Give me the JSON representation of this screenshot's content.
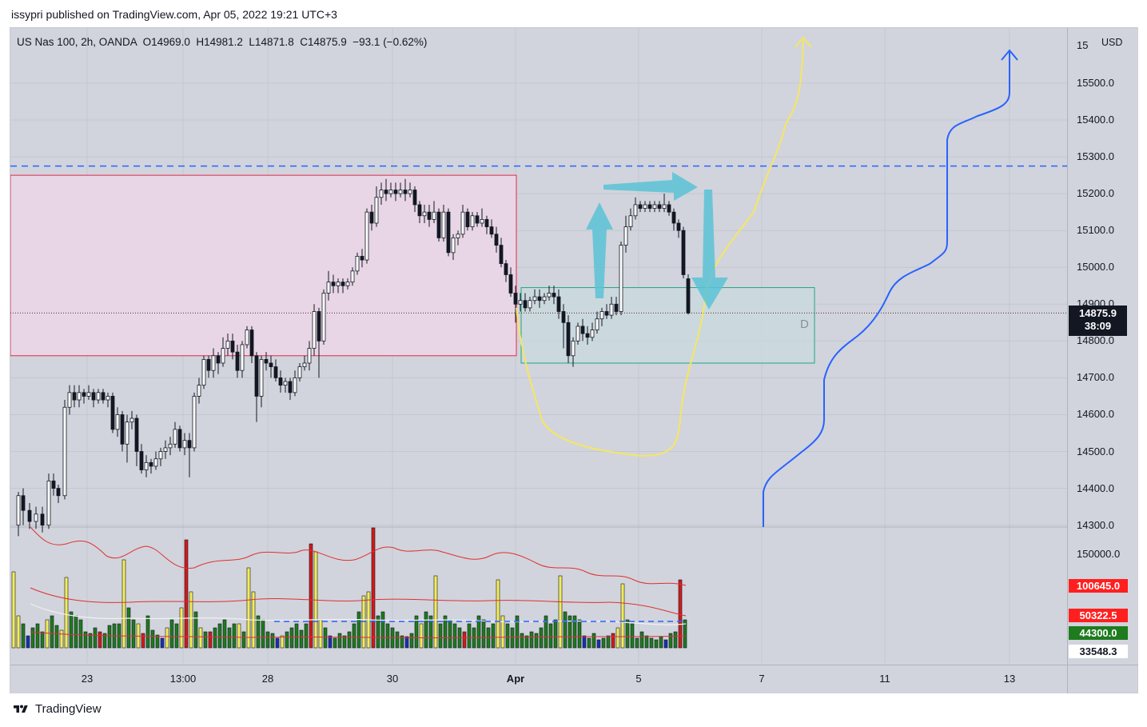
{
  "publish_line": "issypri published on TradingView.com, Apr 05, 2022 19:21 UTC+3",
  "legend": "US Nas 100, 2h, OANDA  O14969.0  H14981.2  L14871.8  C14875.9  −93.1 (−0.62%)",
  "currency": "USD",
  "price_ticks": [
    "15500.0",
    "15400.0",
    "15300.0",
    "15200.0",
    "15100.0",
    "15000.0",
    "14900.0",
    "14800.0",
    "14700.0",
    "14600.0",
    "14500.0",
    "14400.0",
    "14300.0"
  ],
  "top_tick_partial": "15",
  "last_price": "14875.9",
  "countdown": "38:09",
  "volume_axis": {
    "tick": "150000.0",
    "labels": [
      {
        "text": "100645.0",
        "color": "#ff1f1f",
        "fg": "#ffffff"
      },
      {
        "text": "50322.5",
        "color": "#ff1f1f",
        "fg": "#ffffff"
      },
      {
        "text": "44300.0",
        "color": "#1e7b1e",
        "fg": "#ffffff"
      },
      {
        "text": "33548.3",
        "color": "#ffffff",
        "fg": "#131722"
      }
    ]
  },
  "time_ticks": [
    "23",
    "13:00",
    "28",
    "30",
    "Apr",
    "5",
    "7",
    "11",
    "13"
  ],
  "zone_label": "D",
  "brand": "TradingView",
  "colors": {
    "bg": "#d1d4dc",
    "resistance_zone": "#e8d6e6",
    "resistance_border": "#e0294a",
    "demand_zone": "#c9d9df",
    "demand_border": "#22a58a",
    "dashed_level": "#2962ff",
    "yellow_path": "#f5e663",
    "blue_path": "#2962ff",
    "arrow": "#5bc2d6",
    "volume_yellow": "#f2ec5a",
    "volume_green": "#1e7b1e",
    "volume_red": "#d41a1a",
    "volume_blue": "#1a2fb8"
  },
  "chart_data": {
    "type": "candlestick",
    "symbol": "US Nas 100",
    "interval": "2h",
    "ylim": [
      14280,
      15620
    ],
    "dashed_level": 15275,
    "resistance_zone": [
      14760,
      15250
    ],
    "demand_zone": [
      14740,
      14945
    ]
  }
}
